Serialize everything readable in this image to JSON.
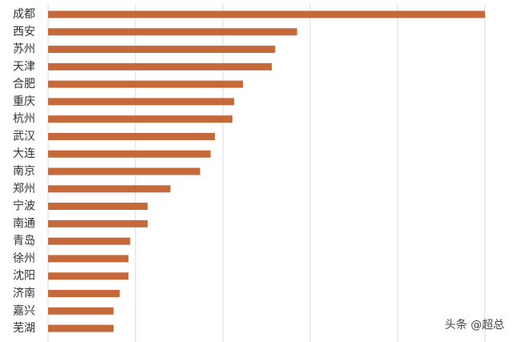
{
  "chart_data": {
    "type": "hbar",
    "categories": [
      "成都",
      "西安",
      "苏州",
      "天津",
      "合肥",
      "重庆",
      "杭州",
      "武汉",
      "大连",
      "南京",
      "郑州",
      "宁波",
      "南通",
      "青岛",
      "徐州",
      "沈阳",
      "济南",
      "嘉兴",
      "芜湖"
    ],
    "values": [
      5.0,
      2.85,
      2.6,
      2.56,
      2.23,
      2.13,
      2.11,
      1.91,
      1.86,
      1.74,
      1.4,
      1.14,
      1.14,
      0.94,
      0.92,
      0.92,
      0.82,
      0.75,
      0.75
    ],
    "color": "#c5683a",
    "xlim": [
      0,
      5
    ],
    "xgrid": [
      0,
      1,
      2,
      3,
      4,
      5
    ],
    "grid": true,
    "watermark": "头条 @超总"
  }
}
